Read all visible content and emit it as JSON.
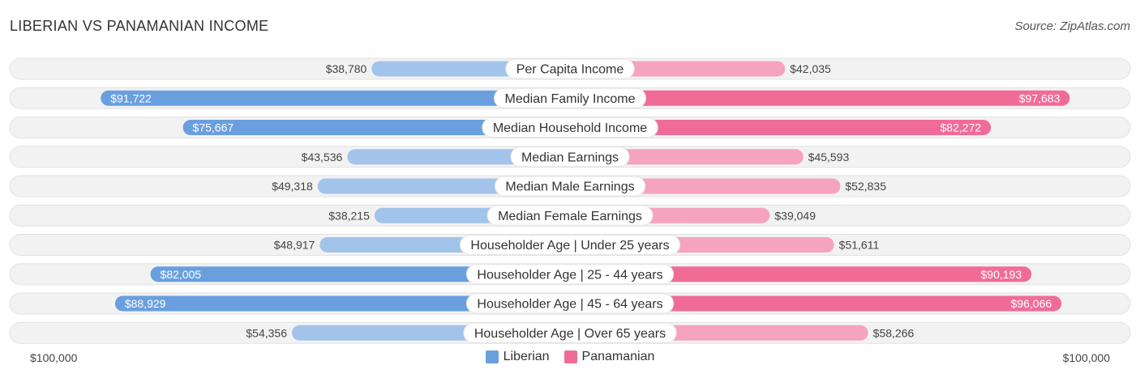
{
  "header": {
    "title": "LIBERIAN VS PANAMANIAN INCOME",
    "source": "Source: ZipAtlas.com"
  },
  "chart_data": {
    "type": "bar",
    "orientation": "horizontal-diverging",
    "categories": [
      "Per Capita Income",
      "Median Family Income",
      "Median Household Income",
      "Median Earnings",
      "Median Male Earnings",
      "Median Female Earnings",
      "Householder Age | Under 25 years",
      "Householder Age | 25 - 44 years",
      "Householder Age | 45 - 64 years",
      "Householder Age | Over 65 years"
    ],
    "series": [
      {
        "name": "Liberian",
        "color": "#6a9fdf",
        "color_light": "#a3c4ea",
        "values": [
          38780,
          91722,
          75667,
          43536,
          49318,
          38215,
          48917,
          82005,
          88929,
          54356
        ],
        "labels": [
          "$38,780",
          "$91,722",
          "$75,667",
          "$43,536",
          "$49,318",
          "$38,215",
          "$48,917",
          "$82,005",
          "$88,929",
          "$54,356"
        ]
      },
      {
        "name": "Panamanian",
        "color": "#f06c96",
        "color_light": "#f6a3bf",
        "values": [
          42035,
          97683,
          82272,
          45593,
          52835,
          39049,
          51611,
          90193,
          96066,
          58266
        ],
        "labels": [
          "$42,035",
          "$97,683",
          "$82,272",
          "$45,593",
          "$52,835",
          "$39,049",
          "$51,611",
          "$90,193",
          "$96,066",
          "$58,266"
        ]
      }
    ],
    "xlim": [
      0,
      100000
    ],
    "axis_labels": {
      "left": "$100,000",
      "right": "$100,000"
    },
    "legend_position": "bottom-center",
    "grid": false
  }
}
